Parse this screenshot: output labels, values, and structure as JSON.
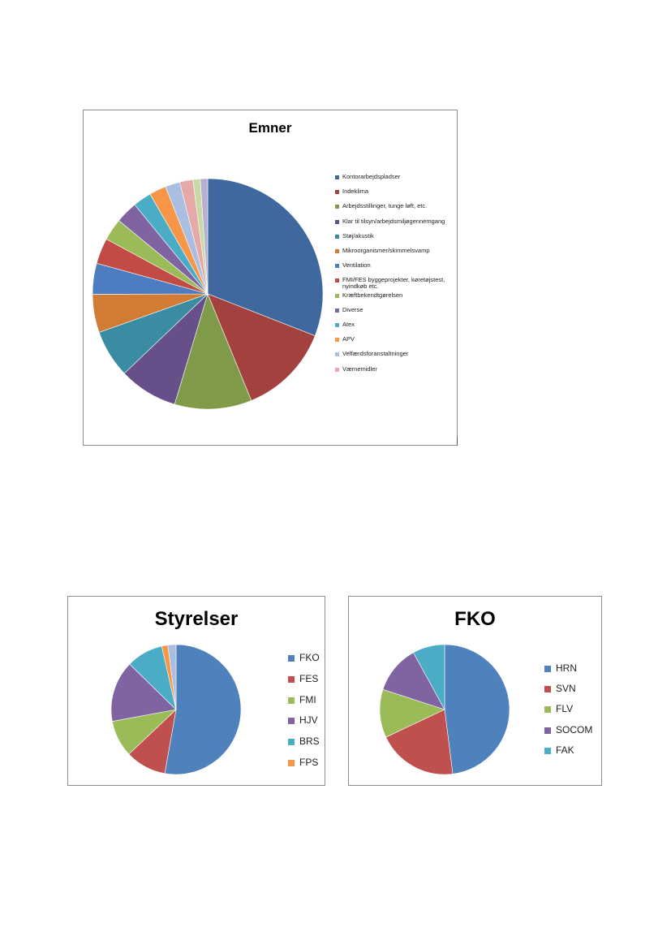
{
  "chart_data": [
    {
      "type": "pie",
      "title": "Emner",
      "legend_position": "right",
      "slices": [
        {
          "label": "Kontorarbejdspladser",
          "value": 30.0,
          "color": "#3E689E"
        },
        {
          "label": "Indeklima",
          "value": 12.5,
          "color": "#A3413F"
        },
        {
          "label": "Arbejdsstillinger, tunge løft, etc.",
          "value": 10.5,
          "color": "#7F9A48"
        },
        {
          "label": "Klar til tilsyn/arbejdsmiljøgennemgang",
          "value": 8.0,
          "color": "#67508A"
        },
        {
          "label": "Støj/akustik",
          "value": 6.5,
          "color": "#3A8CA3"
        },
        {
          "label": "Mikroorganismer/skimmelsvamp",
          "value": 5.2,
          "color": "#D17B35"
        },
        {
          "label": "Ventilation",
          "value": 4.2,
          "color": "#4B7DC0"
        },
        {
          "label": "FMI/FES byggeprojekter, køretøjstest, nyindkøb etc.",
          "value": 3.5,
          "color": "#C24B46"
        },
        {
          "label": "Kræftbekendtgørelsen",
          "value": 3.0,
          "color": "#9BBB59"
        },
        {
          "label": "Diverse",
          "value": 3.0,
          "color": "#8064A2"
        },
        {
          "label": "Atex",
          "value": 2.5,
          "color": "#4BACC6"
        },
        {
          "label": "APV",
          "value": 2.3,
          "color": "#F79646"
        },
        {
          "label": "Velfærdsforanstaltninger",
          "value": 2.0,
          "color": "#A9BEE0"
        },
        {
          "label": "Værnemidler",
          "value": 1.8,
          "color": "#E5A9A8"
        },
        {
          "label": "",
          "value": 1.0,
          "color": "#C8D9A8"
        },
        {
          "label": "",
          "value": 1.0,
          "color": "#B8AFD0"
        }
      ]
    },
    {
      "type": "pie",
      "title": "Styrelser",
      "legend_position": "right",
      "slices": [
        {
          "label": "FKO",
          "value": 52.0,
          "color": "#4F81BD"
        },
        {
          "label": "FES",
          "value": 10.0,
          "color": "#C0504D"
        },
        {
          "label": "FMI",
          "value": 9.0,
          "color": "#9BBB59"
        },
        {
          "label": "HJV",
          "value": 15.0,
          "color": "#8064A2"
        },
        {
          "label": "BRS",
          "value": 9.0,
          "color": "#4BACC6"
        },
        {
          "label": "FPS",
          "value": 1.5,
          "color": "#F79646"
        },
        {
          "label": "",
          "value": 2.0,
          "color": "#A9BEE0"
        }
      ]
    },
    {
      "type": "pie",
      "title": "FKO",
      "legend_position": "right",
      "slices": [
        {
          "label": "HRN",
          "value": 48.0,
          "color": "#4F81BD"
        },
        {
          "label": "SVN",
          "value": 20.0,
          "color": "#C0504D"
        },
        {
          "label": "FLV",
          "value": 12.0,
          "color": "#9BBB59"
        },
        {
          "label": "SOCOM",
          "value": 12.0,
          "color": "#8064A2"
        },
        {
          "label": "FAK",
          "value": 8.0,
          "color": "#4BACC6"
        }
      ]
    }
  ]
}
